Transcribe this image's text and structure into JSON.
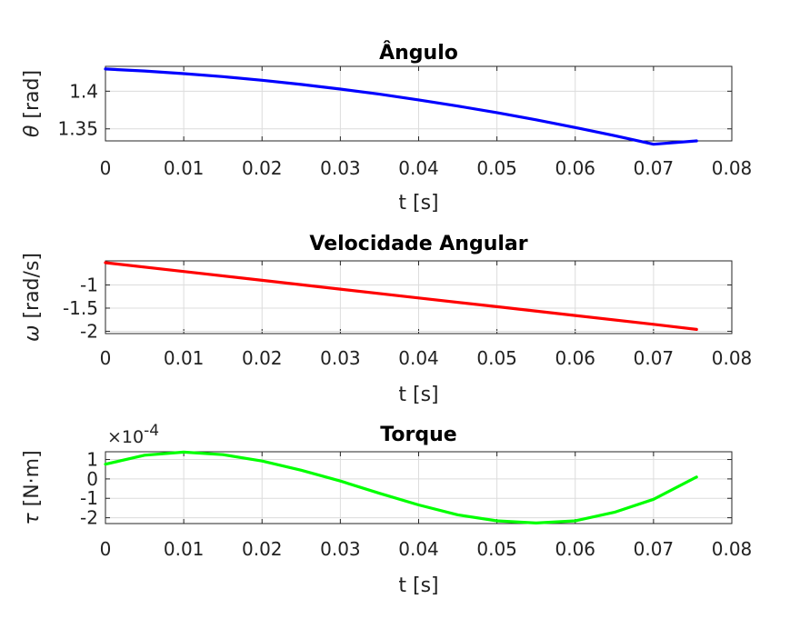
{
  "chart_data": [
    {
      "type": "line",
      "title": "Ângulo",
      "xlabel": "t [s]",
      "ylabel_symbol": "θ",
      "ylabel_unit": "[rad]",
      "color": "#0000ff",
      "xlim": [
        0,
        0.08
      ],
      "ylim": [
        1.334,
        1.433
      ],
      "xticks": [
        "0",
        "0.01",
        "0.02",
        "0.03",
        "0.04",
        "0.05",
        "0.06",
        "0.07",
        "0.08"
      ],
      "yticks": [
        {
          "value": 1.35,
          "label": "1.35"
        },
        {
          "value": 1.4,
          "label": "1.4"
        }
      ],
      "series": [
        {
          "x": [
            0,
            0.005,
            0.01,
            0.015,
            0.02,
            0.025,
            0.03,
            0.035,
            0.04,
            0.045,
            0.05,
            0.055,
            0.06,
            0.065,
            0.07,
            0.0755
          ],
          "y": [
            1.4295,
            1.4268,
            1.4234,
            1.4193,
            1.4145,
            1.409,
            1.4028,
            1.396,
            1.3885,
            1.3803,
            1.3715,
            1.362,
            1.3518,
            1.341,
            1.3295,
            1.334
          ]
        }
      ]
    },
    {
      "type": "line",
      "title": "Velocidade Angular",
      "xlabel": "t [s]",
      "ylabel_symbol": "ω",
      "ylabel_unit": "[rad/s]",
      "color": "#ff0000",
      "xlim": [
        0,
        0.08
      ],
      "ylim": [
        -2.05,
        -0.48
      ],
      "xticks": [
        "0",
        "0.01",
        "0.02",
        "0.03",
        "0.04",
        "0.05",
        "0.06",
        "0.07",
        "0.08"
      ],
      "yticks": [
        {
          "value": -1,
          "label": "-1"
        },
        {
          "value": -1.5,
          "label": "-1.5"
        },
        {
          "value": -2,
          "label": "-2"
        }
      ],
      "series": [
        {
          "x": [
            0,
            0.01,
            0.02,
            0.03,
            0.04,
            0.05,
            0.06,
            0.07,
            0.0755
          ],
          "y": [
            -0.52,
            -0.71,
            -0.9,
            -1.09,
            -1.28,
            -1.47,
            -1.66,
            -1.85,
            -1.96
          ]
        }
      ]
    },
    {
      "type": "line",
      "title": "Torque",
      "xlabel": "t [s]",
      "ylabel_symbol": "τ",
      "ylabel_unit": "[N·m]",
      "exponent_base": "×10",
      "exponent_power": "-4",
      "color": "#00ff00",
      "xlim": [
        0,
        0.08
      ],
      "ylim": [
        -2.3,
        1.4
      ],
      "xticks": [
        "0",
        "0.01",
        "0.02",
        "0.03",
        "0.04",
        "0.05",
        "0.06",
        "0.07",
        "0.08"
      ],
      "yticks": [
        {
          "value": 1,
          "label": "1"
        },
        {
          "value": 0,
          "label": "0"
        },
        {
          "value": -1,
          "label": "-1"
        },
        {
          "value": -2,
          "label": "-2"
        }
      ],
      "series": [
        {
          "x": [
            0,
            0.005,
            0.01,
            0.015,
            0.02,
            0.025,
            0.03,
            0.035,
            0.04,
            0.045,
            0.05,
            0.055,
            0.06,
            0.065,
            0.07,
            0.0755
          ],
          "y": [
            0.76,
            1.22,
            1.38,
            1.25,
            0.92,
            0.45,
            -0.11,
            -0.74,
            -1.34,
            -1.85,
            -2.16,
            -2.27,
            -2.16,
            -1.72,
            -1.05,
            0.1
          ]
        }
      ]
    }
  ]
}
